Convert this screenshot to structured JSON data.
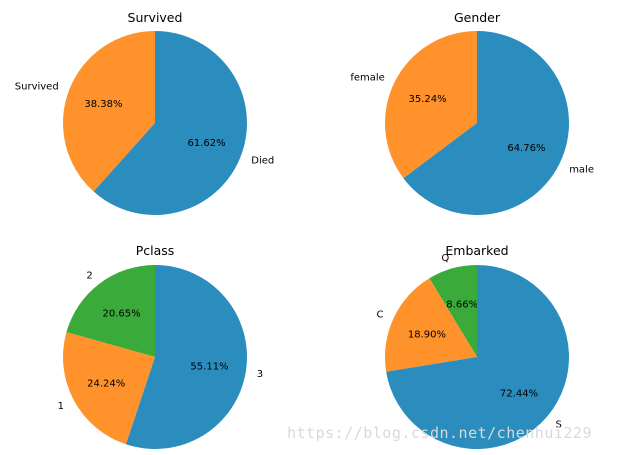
{
  "chart_data": [
    {
      "type": "pie",
      "title": "Survived",
      "slices": [
        {
          "label": "Survived",
          "value": 38.38,
          "pct_label": "38.38%",
          "color": "#ff922b"
        },
        {
          "label": "Died",
          "value": 61.62,
          "pct_label": "61.62%",
          "color": "#2b8cbe"
        }
      ]
    },
    {
      "type": "pie",
      "title": "Gender",
      "slices": [
        {
          "label": "female",
          "value": 35.24,
          "pct_label": "35.24%",
          "color": "#ff922b"
        },
        {
          "label": "male",
          "value": 64.76,
          "pct_label": "64.76%",
          "color": "#2b8cbe"
        }
      ]
    },
    {
      "type": "pie",
      "title": "Pclass",
      "slices": [
        {
          "label": "2",
          "value": 20.65,
          "pct_label": "20.65%",
          "color": "#3aaa3a"
        },
        {
          "label": "1",
          "value": 24.24,
          "pct_label": "24.24%",
          "color": "#ff922b"
        },
        {
          "label": "3",
          "value": 55.11,
          "pct_label": "55.11%",
          "color": "#2b8cbe"
        }
      ]
    },
    {
      "type": "pie",
      "title": "Embarked",
      "slices": [
        {
          "label": "Q",
          "value": 8.66,
          "pct_label": "8.66%",
          "color": "#3aaa3a"
        },
        {
          "label": "C",
          "value": 18.9,
          "pct_label": "18.90%",
          "color": "#ff922b"
        },
        {
          "label": "S",
          "value": 72.44,
          "pct_label": "72.44%",
          "color": "#2b8cbe"
        }
      ]
    }
  ],
  "watermark": "https://blog.csdn.net/chenhui229"
}
